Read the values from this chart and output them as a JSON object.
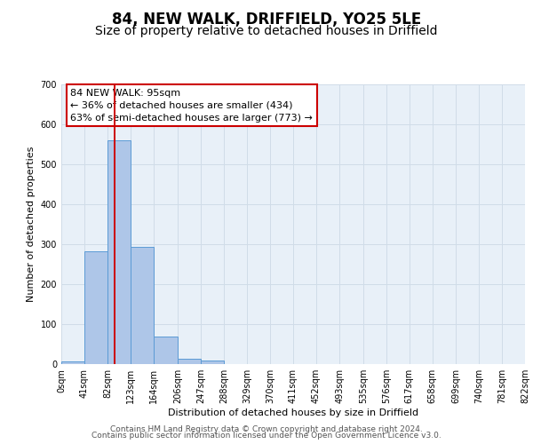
{
  "title": "84, NEW WALK, DRIFFIELD, YO25 5LE",
  "subtitle": "Size of property relative to detached houses in Driffield",
  "xlabel": "Distribution of detached houses by size in Driffield",
  "ylabel": "Number of detached properties",
  "bar_edges": [
    0,
    41,
    82,
    123,
    164,
    206,
    247,
    288,
    329,
    370,
    411,
    452,
    493,
    535,
    576,
    617,
    658,
    699,
    740,
    781,
    822
  ],
  "bar_heights": [
    7,
    282,
    560,
    293,
    68,
    13,
    8,
    0,
    0,
    0,
    0,
    0,
    0,
    0,
    0,
    0,
    0,
    0,
    0,
    0
  ],
  "bar_color": "#aec6e8",
  "bar_edge_color": "#5b9bd5",
  "vline_x": 95,
  "vline_color": "#cc0000",
  "annotation_line1": "84 NEW WALK: 95sqm",
  "annotation_line2": "← 36% of detached houses are smaller (434)",
  "annotation_line3": "63% of semi-detached houses are larger (773) →",
  "annotation_box_color": "#ffffff",
  "annotation_box_edge": "#cc0000",
  "ylim": [
    0,
    700
  ],
  "yticks": [
    0,
    100,
    200,
    300,
    400,
    500,
    600,
    700
  ],
  "tick_labels": [
    "0sqm",
    "41sqm",
    "82sqm",
    "123sqm",
    "164sqm",
    "206sqm",
    "247sqm",
    "288sqm",
    "329sqm",
    "370sqm",
    "411sqm",
    "452sqm",
    "493sqm",
    "535sqm",
    "576sqm",
    "617sqm",
    "658sqm",
    "699sqm",
    "740sqm",
    "781sqm",
    "822sqm"
  ],
  "grid_color": "#d0dce8",
  "bg_color": "#e8f0f8",
  "footer1": "Contains HM Land Registry data © Crown copyright and database right 2024.",
  "footer2": "Contains public sector information licensed under the Open Government Licence v3.0.",
  "title_fontsize": 12,
  "subtitle_fontsize": 10,
  "axis_label_fontsize": 8,
  "tick_fontsize": 7,
  "annotation_fontsize": 8,
  "footer_fontsize": 6.5
}
